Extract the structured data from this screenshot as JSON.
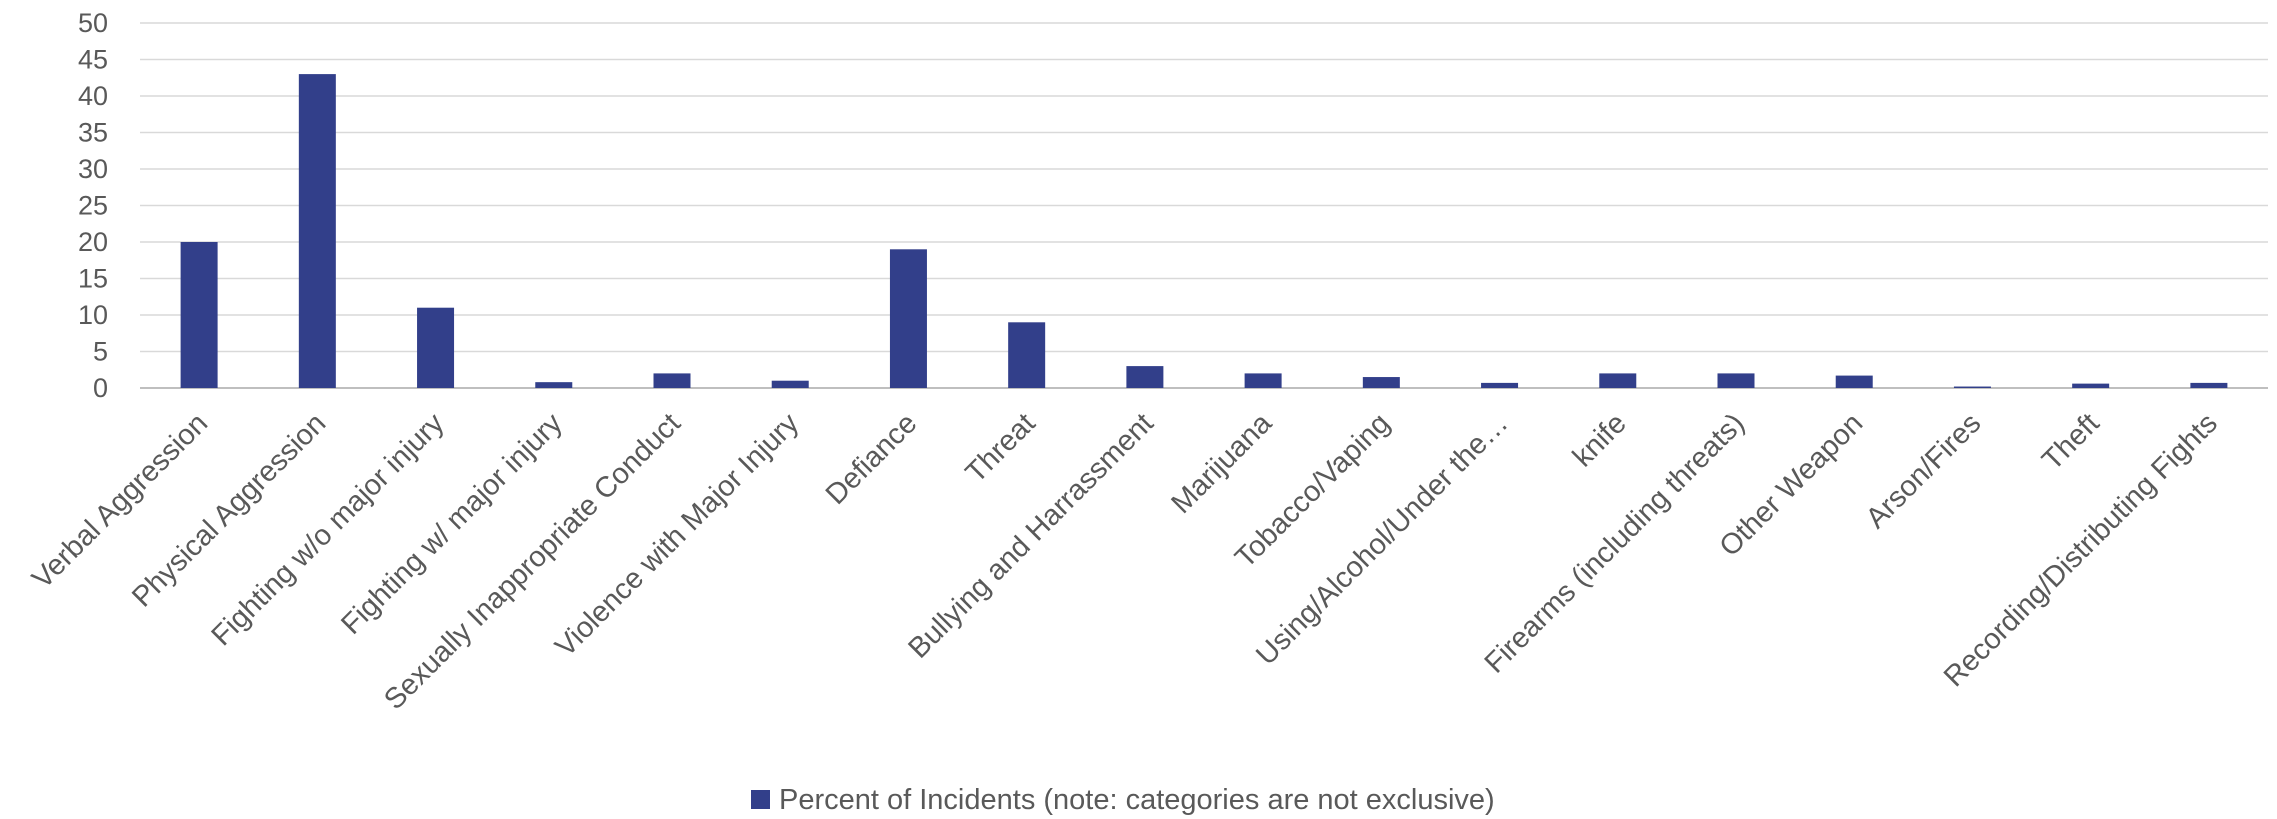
{
  "chart_data": {
    "type": "bar",
    "title": "",
    "xlabel": "",
    "ylabel": "",
    "ylim": [
      0,
      50
    ],
    "yticks": [
      0,
      5,
      10,
      15,
      20,
      25,
      30,
      35,
      40,
      45,
      50
    ],
    "grid": true,
    "legend_position": "bottom",
    "categories": [
      "Verbal Aggression",
      "Physical Aggression",
      "Fighting w/o major injury",
      "Fighting w/ major injury",
      "Sexually Inappropriate Conduct",
      "Violence with Major Injury",
      "Defiance",
      "Threat",
      "Bullying and Harrassment",
      "Marijuana",
      "Tobacco/Vaping",
      "Using/Alcohol/Under the…",
      "knife",
      "Firearms (including threats)",
      "Other Weapon",
      "Arson/Fires",
      "Theft",
      "Recording/Distributing Fights"
    ],
    "series": [
      {
        "name": "Percent of Incidents (note: categories are not exclusive)",
        "color": "#323f8a",
        "values": [
          20,
          43,
          11,
          0.8,
          2,
          1,
          19,
          9,
          3,
          2,
          1.5,
          0.7,
          2,
          2,
          1.7,
          0.2,
          0.6,
          0.7
        ]
      }
    ]
  }
}
